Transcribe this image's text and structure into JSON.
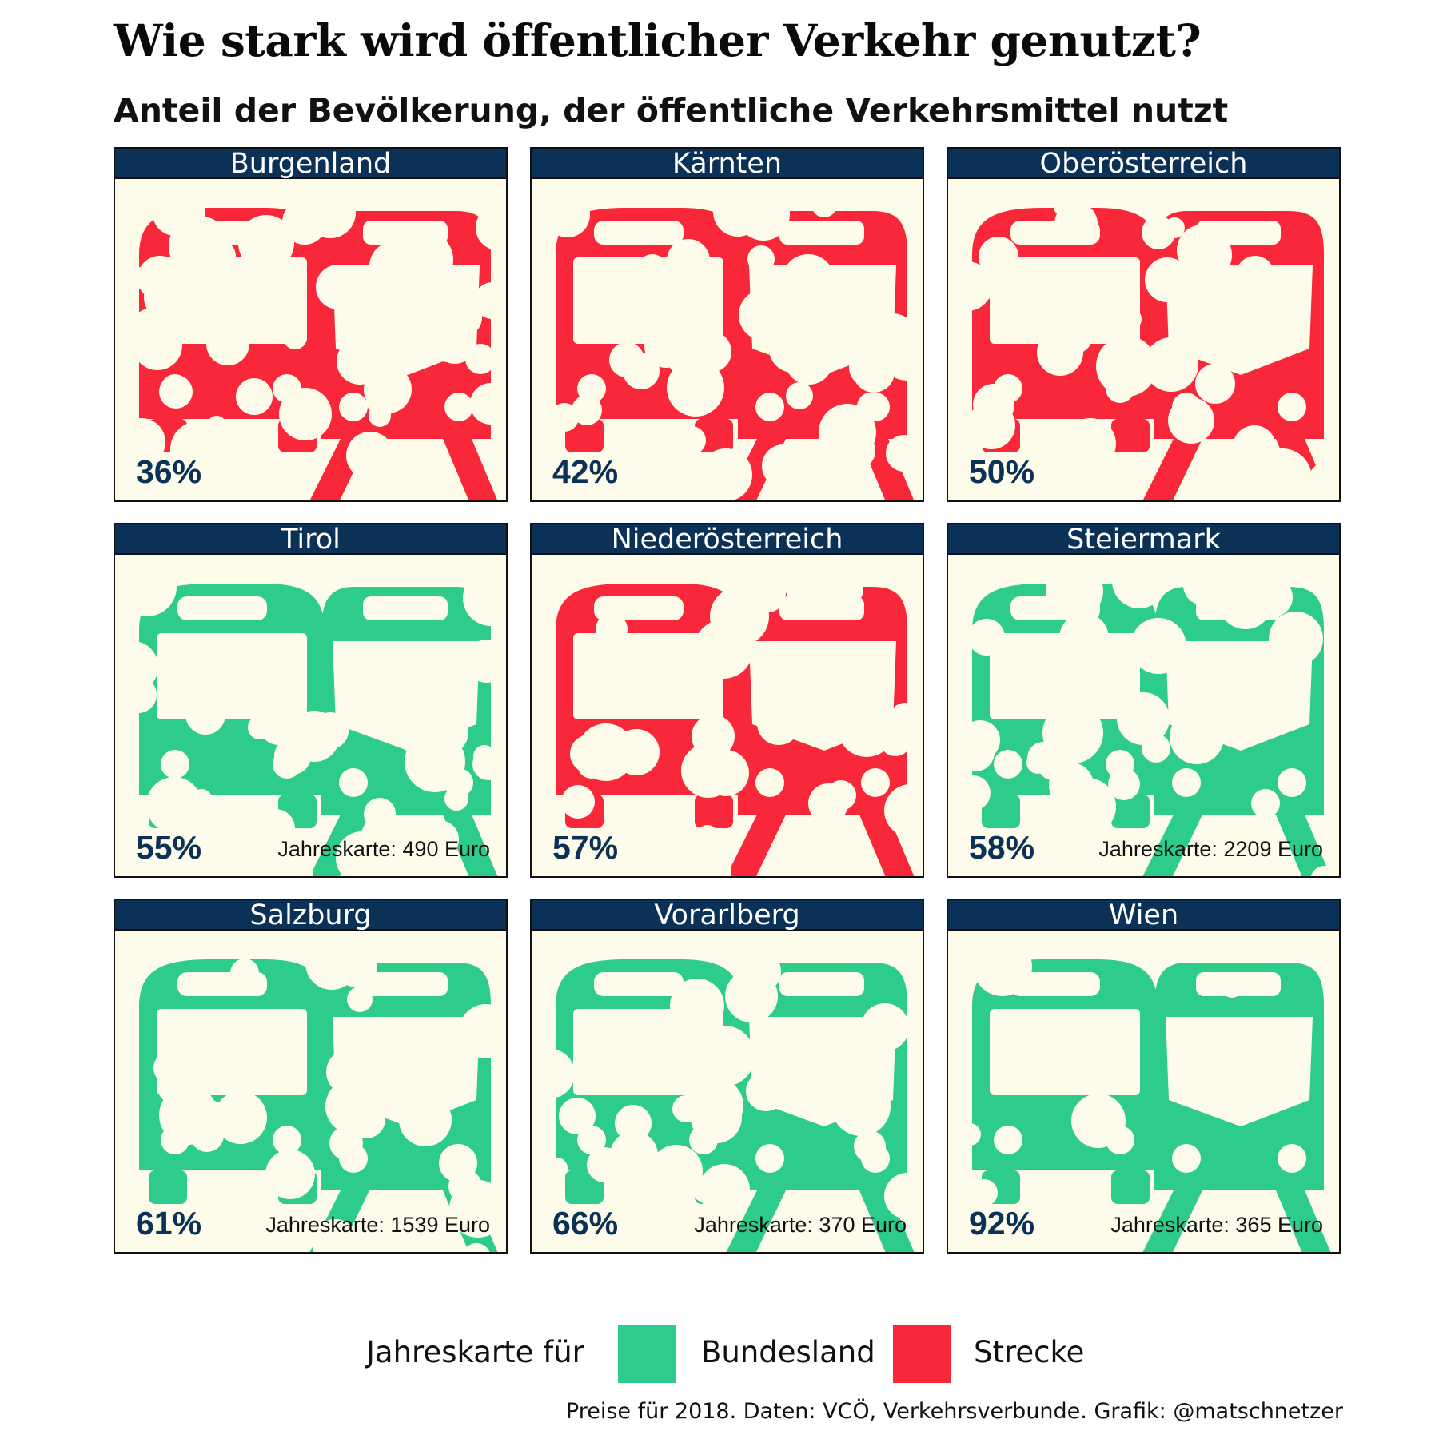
{
  "title": "Wie stark wird öffentlicher Verkehr genutzt?",
  "subtitle": "Anteil der Bevölkerung, der öffentliche Verkehrsmittel nutzt",
  "colors": {
    "bundesland": "#2ecc8b",
    "strecke": "#f8283a",
    "header_bg": "#0b3157",
    "panel_bg": "#fdfcea"
  },
  "chart_data": {
    "type": "table",
    "panels": [
      {
        "region": "Burgenland",
        "share": "36%",
        "share_value": 36,
        "ticket": "strecke",
        "price": ""
      },
      {
        "region": "Kärnten",
        "share": "42%",
        "share_value": 42,
        "ticket": "strecke",
        "price": ""
      },
      {
        "region": "Oberösterreich",
        "share": "50%",
        "share_value": 50,
        "ticket": "strecke",
        "price": ""
      },
      {
        "region": "Tirol",
        "share": "55%",
        "share_value": 55,
        "ticket": "bundesland",
        "price": "Jahreskarte: 490 Euro"
      },
      {
        "region": "Niederösterreich",
        "share": "57%",
        "share_value": 57,
        "ticket": "strecke",
        "price": ""
      },
      {
        "region": "Steiermark",
        "share": "58%",
        "share_value": 58,
        "ticket": "bundesland",
        "price": "Jahreskarte: 2209 Euro"
      },
      {
        "region": "Salzburg",
        "share": "61%",
        "share_value": 61,
        "ticket": "bundesland",
        "price": "Jahreskarte: 1539 Euro"
      },
      {
        "region": "Vorarlberg",
        "share": "66%",
        "share_value": 66,
        "ticket": "bundesland",
        "price": "Jahreskarte: 370 Euro"
      },
      {
        "region": "Wien",
        "share": "92%",
        "share_value": 92,
        "ticket": "bundesland",
        "price": "Jahreskarte: 365 Euro"
      }
    ],
    "legend": {
      "title": "Jahreskarte für",
      "items": [
        {
          "label": "Bundesland",
          "color": "#2ecc8b"
        },
        {
          "label": "Strecke",
          "color": "#f8283a"
        }
      ]
    }
  },
  "footer": "Preise für 2018. Daten: VCÖ, Verkehrsverbunde. Grafik: @matschnetzer"
}
